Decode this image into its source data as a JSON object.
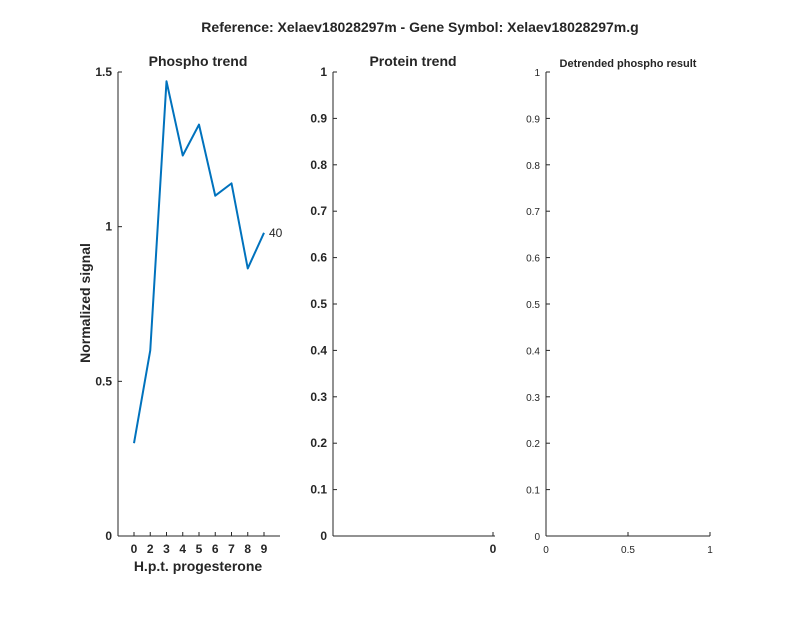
{
  "figure": {
    "suptitle": "Reference:  Xelaev18028297m - Gene Symbol:  Xelaev18028297m.g"
  },
  "chart_data": [
    {
      "type": "line",
      "title": "Phospho trend",
      "xlabel": "H.p.t. progesterone",
      "ylabel": "Normalized signal",
      "x": [
        0,
        2,
        3,
        4,
        5,
        6,
        7,
        8,
        9
      ],
      "x_ticks": [
        "0",
        "2",
        "3",
        "4",
        "5",
        "6",
        "7",
        "8",
        "9"
      ],
      "ylim": [
        0,
        1.5
      ],
      "y_ticks": [
        "0",
        "0.5",
        "1",
        "1.5"
      ],
      "series": [
        {
          "values": [
            0.3,
            0.6,
            1.47,
            1.23,
            1.33,
            1.1,
            1.14,
            0.865,
            0.98
          ],
          "color": "#0072BD",
          "end_label": "40"
        }
      ],
      "grid": false
    },
    {
      "type": "line",
      "title": "Protein trend",
      "xlabel": "",
      "ylabel": "",
      "x_ticks": [
        "0"
      ],
      "ylim": [
        0,
        1
      ],
      "y_ticks": [
        "0",
        "0.1",
        "0.2",
        "0.3",
        "0.4",
        "0.5",
        "0.6",
        "0.7",
        "0.8",
        "0.9",
        "1"
      ],
      "series": [],
      "grid": false
    },
    {
      "type": "line",
      "title": "Detrended phospho result",
      "xlabel": "",
      "ylabel": "",
      "xlim": [
        0,
        1
      ],
      "x_ticks": [
        "0",
        "0.5",
        "1"
      ],
      "ylim": [
        0,
        1
      ],
      "y_ticks": [
        "0",
        "0.1",
        "0.2",
        "0.3",
        "0.4",
        "0.5",
        "0.6",
        "0.7",
        "0.8",
        "0.9",
        "1"
      ],
      "series": [],
      "grid": false
    }
  ]
}
